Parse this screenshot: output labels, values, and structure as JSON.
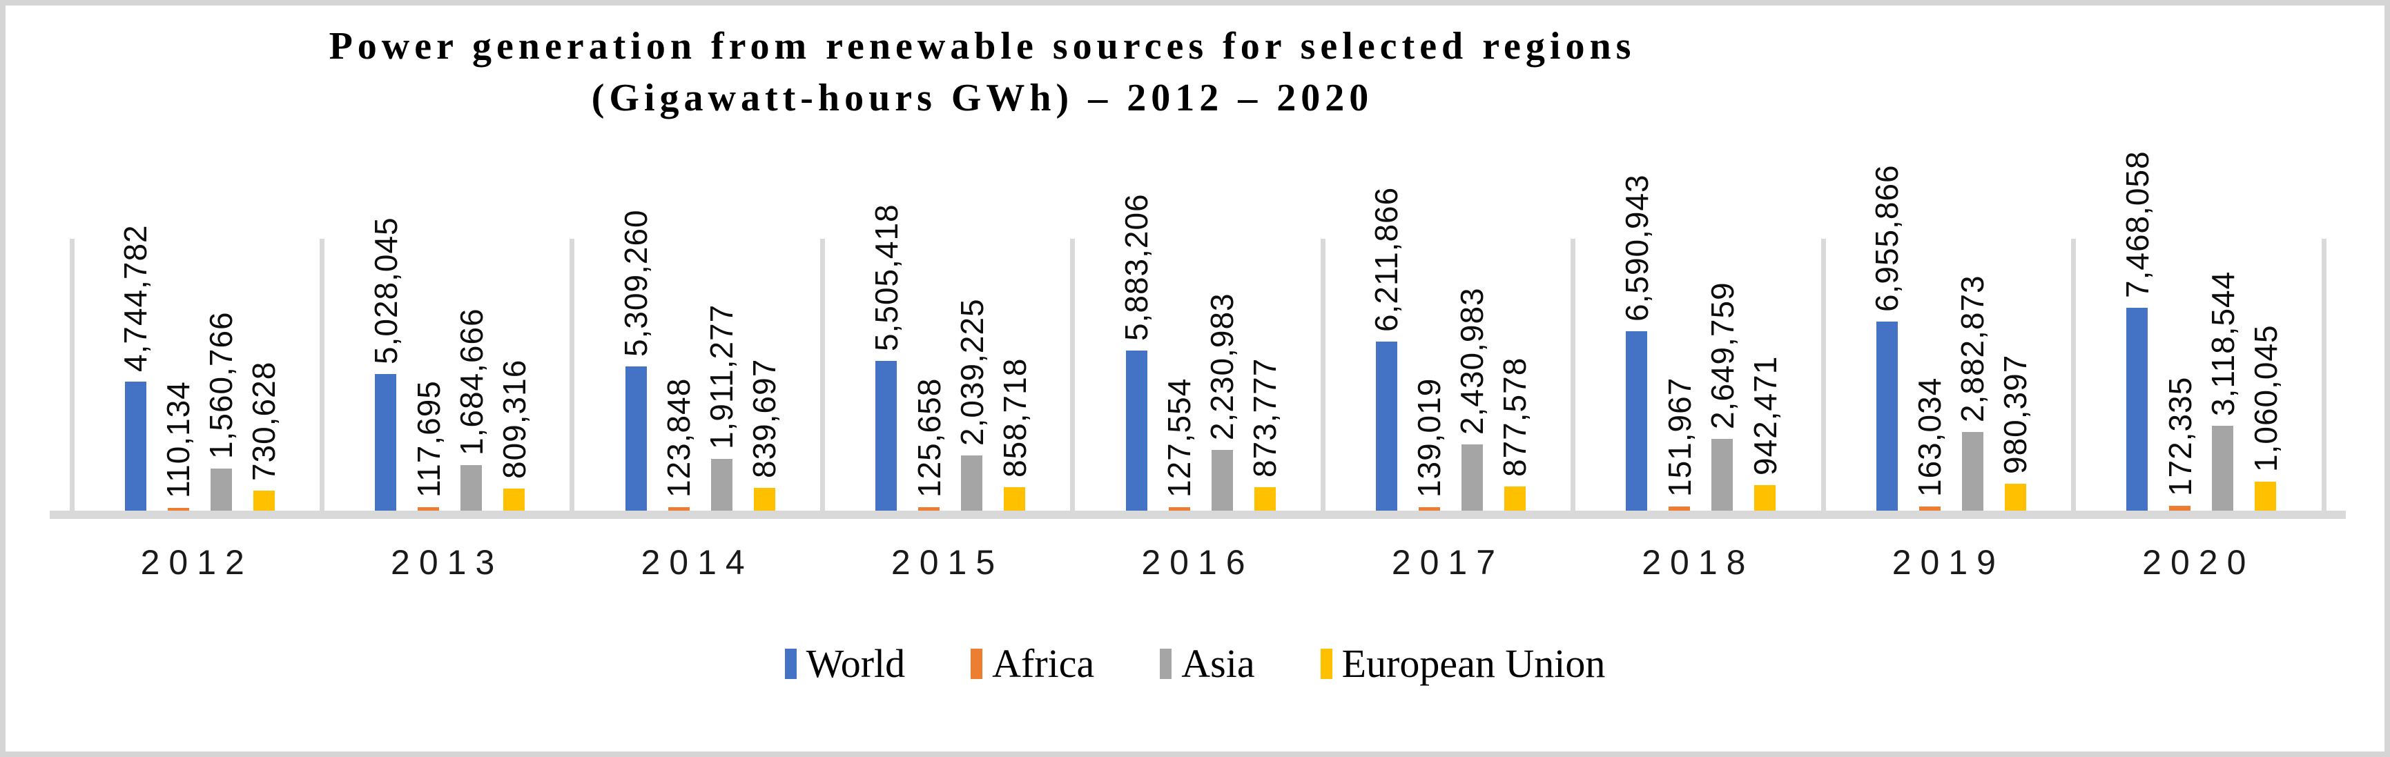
{
  "chart_data": {
    "type": "bar",
    "title": "Power generation from renewable sources for selected regions",
    "subtitle": "(Gigawatt-hours GWh) – 2012 – 2020",
    "categories": [
      "2012",
      "2013",
      "2014",
      "2015",
      "2016",
      "2017",
      "2018",
      "2019",
      "2020"
    ],
    "series": [
      {
        "name": "World",
        "color": "#4472C4",
        "values": [
          4744782,
          5028045,
          5309260,
          5505418,
          5883206,
          6211866,
          6590943,
          6955866,
          7468058
        ],
        "labels": [
          "4,744,782",
          "5,028,045",
          "5,309,260",
          "5,505,418",
          "5,883,206",
          "6,211,866",
          "6,590,943",
          "6,955,866",
          "7,468,058"
        ]
      },
      {
        "name": "Africa",
        "color": "#ED7D31",
        "values": [
          110134,
          117695,
          123848,
          125658,
          127554,
          139019,
          151967,
          163034,
          172335
        ],
        "labels": [
          "110,134",
          "117,695",
          "123,848",
          "125,658",
          "127,554",
          "139,019",
          "151,967",
          "163,034",
          "172,335"
        ]
      },
      {
        "name": "Asia",
        "color": "#A5A5A5",
        "values": [
          1560766,
          1684666,
          1911277,
          2039225,
          2230983,
          2430983,
          2649759,
          2882873,
          3118544
        ],
        "labels": [
          "1,560,766",
          "1,684,666",
          "1,911,277",
          "2,039,225",
          "2,230,983",
          "2,430,983",
          "2,649,759",
          "2,882,873",
          "3,118,544"
        ]
      },
      {
        "name": "European Union",
        "color": "#FFC000",
        "values": [
          730628,
          809316,
          839697,
          858718,
          873777,
          877578,
          942471,
          980397,
          1060045
        ],
        "labels": [
          "730,628",
          "809,316",
          "839,697",
          "858,718",
          "873,777",
          "877,578",
          "942,471",
          "980,397",
          "1,060,045"
        ]
      }
    ],
    "ylim": [
      0,
      10000000
    ],
    "xlabel": "",
    "ylabel": "",
    "value_axis_visible": false,
    "gridlines": "vertical-category-separators",
    "grid_color": "#D9D9D9",
    "legend_position": "bottom"
  }
}
